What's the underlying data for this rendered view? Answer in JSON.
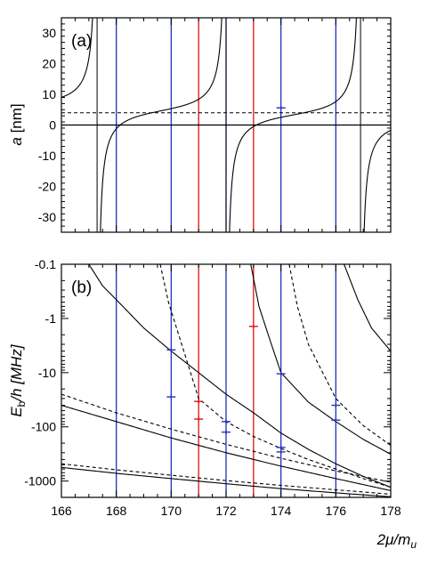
{
  "colors": {
    "blue": "#2233bb",
    "red": "#dd1111",
    "black": "#000000"
  },
  "chart_data": [
    {
      "type": "line",
      "panel_label": "(a)",
      "ylabel": {
        "main": "a",
        "unit": " [nm]"
      },
      "xlim": [
        166,
        178
      ],
      "ylim": [
        -35,
        35
      ],
      "y_ticks": [
        30,
        20,
        10,
        0,
        -10,
        -20,
        -30
      ],
      "x_tick_labels": [],
      "grid": false,
      "reference_lines": {
        "zero": 0,
        "dashed": 4
      },
      "vertical_lines": [
        {
          "x": 168,
          "color": "blue"
        },
        {
          "x": 170,
          "color": "blue"
        },
        {
          "x": 171,
          "color": "red"
        },
        {
          "x": 172,
          "color": "blue"
        },
        {
          "x": 173,
          "color": "red"
        },
        {
          "x": 174,
          "color": "blue"
        },
        {
          "x": 176,
          "color": "blue"
        }
      ],
      "asymptotes": [
        167.3,
        172.0,
        176.9
      ],
      "curve": {
        "background": 4,
        "poles": [
          167.3,
          172.0,
          176.9
        ],
        "scale": 4.9
      },
      "markers": [
        {
          "x": 174,
          "y": 5.6,
          "color": "blue"
        }
      ]
    },
    {
      "type": "line",
      "panel_label": "(b)",
      "ylabel": {
        "main": "E",
        "sub": "b",
        "rest": "/h [MHz]"
      },
      "xlabel": {
        "pre": "2μ/m",
        "sub": "u"
      },
      "xlim": [
        166,
        178
      ],
      "y_scale": "log (binding energy, downward)",
      "ylim": [
        -0.1,
        -2000
      ],
      "y_ticks": [
        {
          "value": -0.1,
          "label": "-0.1"
        },
        {
          "value": -1,
          "label": "-1"
        },
        {
          "value": -10,
          "label": "-10"
        },
        {
          "value": -100,
          "label": "-100"
        },
        {
          "value": -1000,
          "label": "-1000"
        }
      ],
      "x_ticks": [
        166,
        168,
        170,
        172,
        174,
        176,
        178
      ],
      "grid": false,
      "vertical_lines": [
        {
          "x": 168,
          "color": "blue"
        },
        {
          "x": 170,
          "color": "blue"
        },
        {
          "x": 171,
          "color": "red"
        },
        {
          "x": 172,
          "color": "blue"
        },
        {
          "x": 173,
          "color": "red"
        },
        {
          "x": 174,
          "color": "blue"
        },
        {
          "x": 176,
          "color": "blue"
        }
      ],
      "curves": [
        {
          "style": "solid",
          "x": [
            167.0,
            167.5,
            168,
            169,
            170,
            171,
            172,
            173,
            174,
            175,
            176,
            177,
            178
          ],
          "y": [
            -0.1,
            -0.25,
            -0.45,
            -1.5,
            -4,
            -10,
            -25,
            -55,
            -130,
            -260,
            -480,
            -820,
            -1300
          ]
        },
        {
          "style": "solid",
          "x": [
            172.9,
            173.2,
            173.6,
            174,
            175,
            176,
            177,
            178
          ],
          "y": [
            -0.1,
            -0.6,
            -2.5,
            -10,
            -35,
            -80,
            -170,
            -320
          ]
        },
        {
          "style": "solid",
          "x": [
            176.3,
            176.8,
            177.3,
            178
          ],
          "y": [
            -0.1,
            -0.45,
            -1.5,
            -4
          ]
        },
        {
          "style": "dashed",
          "x": [
            169.6,
            169.9,
            170.3,
            171,
            172,
            173,
            174,
            175,
            176,
            177,
            178
          ],
          "y": [
            -0.1,
            -0.5,
            -2.2,
            -30,
            -80,
            -150,
            -250,
            -400,
            -600,
            -900,
            -1300
          ]
        },
        {
          "style": "dashed",
          "x": [
            174.3,
            174.6,
            175,
            176,
            177,
            178
          ],
          "y": [
            -0.1,
            -0.6,
            -3,
            -30,
            -95,
            -220
          ]
        },
        {
          "style": "solid",
          "x": [
            166,
            168,
            170,
            172,
            174,
            176,
            178
          ],
          "y": [
            -40,
            -80,
            -160,
            -300,
            -530,
            -900,
            -1500
          ]
        },
        {
          "style": "dashed",
          "x": [
            166,
            168,
            170,
            172,
            174,
            176,
            178
          ],
          "y": [
            -25,
            -55,
            -110,
            -210,
            -380,
            -650,
            -1050
          ]
        },
        {
          "style": "solid",
          "x": [
            166,
            168,
            170,
            172,
            174,
            176,
            178
          ],
          "y": [
            -560,
            -720,
            -900,
            -1120,
            -1380,
            -1650,
            -1950
          ]
        },
        {
          "style": "dashed",
          "x": [
            166,
            168,
            170,
            172,
            174,
            176,
            178
          ],
          "y": [
            -480,
            -620,
            -780,
            -980,
            -1200,
            -1450,
            -1750
          ]
        }
      ],
      "markers": [
        {
          "x": 170,
          "y": -3.8,
          "color": "blue"
        },
        {
          "x": 170,
          "y": -28,
          "color": "blue"
        },
        {
          "x": 171,
          "y": -34,
          "color": "red"
        },
        {
          "x": 171,
          "y": -72,
          "color": "red"
        },
        {
          "x": 172,
          "y": -80,
          "color": "blue"
        },
        {
          "x": 172,
          "y": -125,
          "color": "blue"
        },
        {
          "x": 173,
          "y": -1.4,
          "color": "red"
        },
        {
          "x": 174,
          "y": -10.5,
          "color": "blue"
        },
        {
          "x": 174,
          "y": -240,
          "color": "blue"
        },
        {
          "x": 174,
          "y": -290,
          "color": "blue"
        },
        {
          "x": 176,
          "y": -40,
          "color": "blue"
        },
        {
          "x": 176,
          "y": -75,
          "color": "blue"
        }
      ]
    }
  ]
}
